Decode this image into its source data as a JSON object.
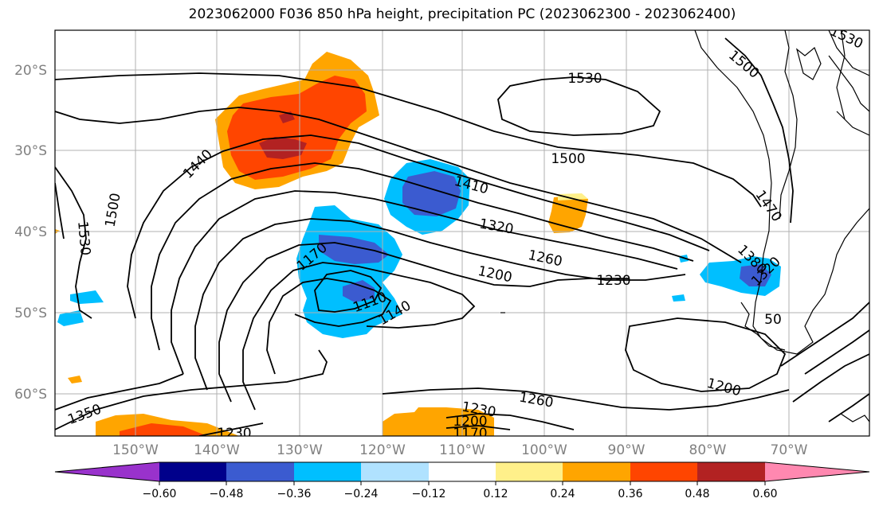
{
  "title": "2023062000 F036 850 hPa height, precipitation PC (2023062300 - 2023062400)",
  "map": {
    "lat_labels": [
      "20°S",
      "30°S",
      "40°S",
      "50°S",
      "60°S"
    ],
    "lon_labels": [
      "150°W",
      "140°W",
      "130°W",
      "120°W",
      "110°W",
      "100°W",
      "90°W",
      "80°W",
      "70°W"
    ],
    "contour_labels": [
      "1530",
      "1500",
      "1530",
      "1500",
      "1440",
      "1410",
      "1320",
      "1260",
      "1200",
      "1230",
      "1170",
      "1110",
      "1140",
      "1350",
      "1230",
      "1200",
      "1170",
      "1230",
      "1260",
      "1200",
      "1500",
      "1530",
      "1470",
      "1380",
      "1320",
      "50"
    ]
  },
  "colorbar": {
    "tick_labels": [
      "−0.60",
      "−0.48",
      "−0.36",
      "−0.24",
      "−0.12",
      "0.12",
      "0.24",
      "0.36",
      "0.48",
      "0.60"
    ],
    "colors": [
      "#9932cc",
      "#00008b",
      "#3b5bd0",
      "#00bfff",
      "#b0e2ff",
      "#ffffff",
      "#fff08a",
      "#ffa500",
      "#ff4500",
      "#b22222",
      "#ff88b0"
    ]
  }
}
